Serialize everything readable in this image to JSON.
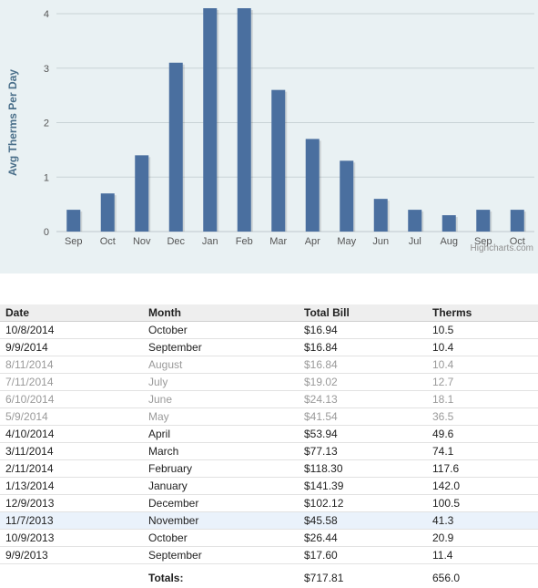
{
  "chart_data": {
    "type": "bar",
    "categories": [
      "Sep",
      "Oct",
      "Nov",
      "Dec",
      "Jan",
      "Feb",
      "Mar",
      "Apr",
      "May",
      "Jun",
      "Jul",
      "Aug",
      "Sep",
      "Oct"
    ],
    "values": [
      0.4,
      0.7,
      1.4,
      3.1,
      4.1,
      4.1,
      2.6,
      1.7,
      1.3,
      0.6,
      0.4,
      0.3,
      0.4,
      0.4
    ],
    "ylabel": "Avg Therms Per Day",
    "xlabel": "",
    "ylim": [
      0,
      4
    ],
    "yticks": [
      0,
      1,
      2,
      3,
      4
    ],
    "grid": true,
    "bar_color": "#4a6f9f",
    "credit": "Highcharts.com"
  },
  "table": {
    "headers": {
      "date": "Date",
      "month": "Month",
      "bill": "Total Bill",
      "therms": "Therms"
    },
    "rows": [
      {
        "date": "10/8/2014",
        "month": "October",
        "bill": "$16.94",
        "therms": "10.5"
      },
      {
        "date": "9/9/2014",
        "month": "September",
        "bill": "$16.84",
        "therms": "10.4"
      },
      {
        "date": "8/11/2014",
        "month": "August",
        "bill": "$16.84",
        "therms": "10.4"
      },
      {
        "date": "7/11/2014",
        "month": "July",
        "bill": "$19.02",
        "therms": "12.7"
      },
      {
        "date": "6/10/2014",
        "month": "June",
        "bill": "$24.13",
        "therms": "18.1"
      },
      {
        "date": "5/9/2014",
        "month": "May",
        "bill": "$41.54",
        "therms": "36.5"
      },
      {
        "date": "4/10/2014",
        "month": "April",
        "bill": "$53.94",
        "therms": "49.6"
      },
      {
        "date": "3/11/2014",
        "month": "March",
        "bill": "$77.13",
        "therms": "74.1"
      },
      {
        "date": "2/11/2014",
        "month": "February",
        "bill": "$118.30",
        "therms": "117.6"
      },
      {
        "date": "1/13/2014",
        "month": "January",
        "bill": "$141.39",
        "therms": "142.0"
      },
      {
        "date": "12/9/2013",
        "month": "December",
        "bill": "$102.12",
        "therms": "100.5"
      },
      {
        "date": "11/7/2013",
        "month": "November",
        "bill": "$45.58",
        "therms": "41.3"
      },
      {
        "date": "10/9/2013",
        "month": "October",
        "bill": "$26.44",
        "therms": "20.9"
      },
      {
        "date": "9/9/2013",
        "month": "September",
        "bill": "$17.60",
        "therms": "11.4"
      }
    ],
    "totals": {
      "label": "Totals:",
      "bill": "$717.81",
      "therms": "656.0"
    }
  }
}
